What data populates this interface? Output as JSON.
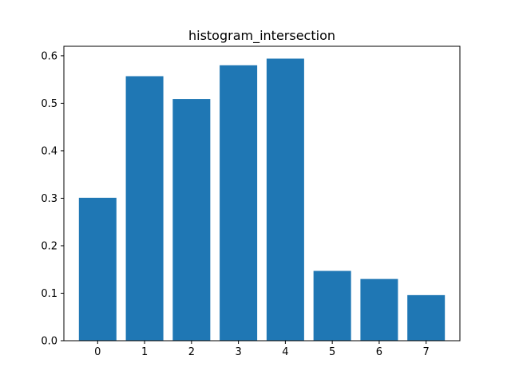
{
  "chart_data": {
    "type": "bar",
    "title": "histogram_intersection",
    "xlabel": "",
    "ylabel": "",
    "categories": [
      "0",
      "1",
      "2",
      "3",
      "4",
      "5",
      "6",
      "7"
    ],
    "values": [
      0.301,
      0.557,
      0.509,
      0.58,
      0.594,
      0.147,
      0.13,
      0.096
    ],
    "ylim": [
      0,
      0.62
    ],
    "yticks": [
      0.0,
      0.1,
      0.2,
      0.3,
      0.4,
      0.5,
      0.6
    ],
    "ytick_labels": [
      "0.0",
      "0.1",
      "0.2",
      "0.3",
      "0.4",
      "0.5",
      "0.6"
    ],
    "bar_color": "#1f77b4",
    "grid": false,
    "legend": "none"
  }
}
